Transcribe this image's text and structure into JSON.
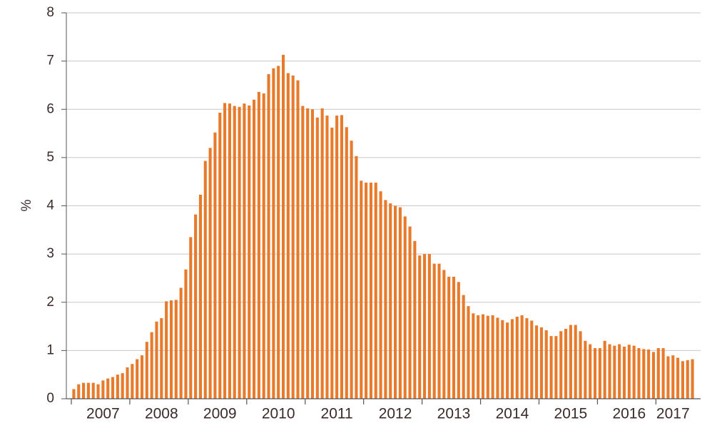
{
  "chart_data": {
    "type": "bar",
    "y_label": "%",
    "color": "#e87a2c",
    "grid": true,
    "ylim": [
      0,
      8
    ],
    "yticks": [
      0,
      1,
      2,
      3,
      4,
      5,
      6,
      7,
      8
    ],
    "categories": [
      null,
      null,
      null,
      null,
      null,
      null,
      "2007",
      null,
      null,
      null,
      null,
      null,
      null,
      null,
      null,
      null,
      null,
      null,
      "2008",
      null,
      null,
      null,
      null,
      null,
      null,
      null,
      null,
      null,
      null,
      null,
      "2009",
      null,
      null,
      null,
      null,
      null,
      null,
      null,
      null,
      null,
      null,
      null,
      "2010",
      null,
      null,
      null,
      null,
      null,
      null,
      null,
      null,
      null,
      null,
      null,
      "2011",
      null,
      null,
      null,
      null,
      null,
      null,
      null,
      null,
      null,
      null,
      null,
      "2012",
      null,
      null,
      null,
      null,
      null,
      null,
      null,
      null,
      null,
      null,
      null,
      "2013",
      null,
      null,
      null,
      null,
      null,
      null,
      null,
      null,
      null,
      null,
      null,
      "2014",
      null,
      null,
      null,
      null,
      null,
      null,
      null,
      null,
      null,
      null,
      null,
      "2015",
      null,
      null,
      null,
      null,
      null,
      null,
      null,
      null,
      null,
      null,
      null,
      "2016",
      null,
      null,
      null,
      null,
      null,
      null,
      null,
      null,
      "2017",
      null,
      null,
      null,
      null
    ],
    "values": [
      0.2,
      0.3,
      0.33,
      0.33,
      0.33,
      0.3,
      0.38,
      0.42,
      0.45,
      0.5,
      0.53,
      0.65,
      0.72,
      0.82,
      0.9,
      1.18,
      1.38,
      1.6,
      1.67,
      2.02,
      2.04,
      2.05,
      2.3,
      2.68,
      3.35,
      3.82,
      4.23,
      4.93,
      5.2,
      5.52,
      5.93,
      6.13,
      6.12,
      6.07,
      6.05,
      6.12,
      6.08,
      6.2,
      6.36,
      6.33,
      6.73,
      6.85,
      6.9,
      7.13,
      6.75,
      6.7,
      6.6,
      6.07,
      6.02,
      6.0,
      5.83,
      6.02,
      5.87,
      5.62,
      5.87,
      5.88,
      5.63,
      5.35,
      5.03,
      4.52,
      4.48,
      4.48,
      4.48,
      4.3,
      4.12,
      4.05,
      4.0,
      3.97,
      3.78,
      3.57,
      3.27,
      2.97,
      3.0,
      3.0,
      2.8,
      2.8,
      2.67,
      2.53,
      2.53,
      2.42,
      2.15,
      1.92,
      1.77,
      1.73,
      1.75,
      1.72,
      1.73,
      1.68,
      1.63,
      1.58,
      1.65,
      1.7,
      1.73,
      1.67,
      1.62,
      1.52,
      1.48,
      1.42,
      1.3,
      1.3,
      1.4,
      1.45,
      1.53,
      1.53,
      1.4,
      1.2,
      1.13,
      1.05,
      1.05,
      1.2,
      1.13,
      1.1,
      1.13,
      1.08,
      1.12,
      1.1,
      1.05,
      1.03,
      1.02,
      0.97,
      1.05,
      1.05,
      0.88,
      0.9,
      0.85,
      0.78,
      0.8,
      0.82
    ]
  }
}
